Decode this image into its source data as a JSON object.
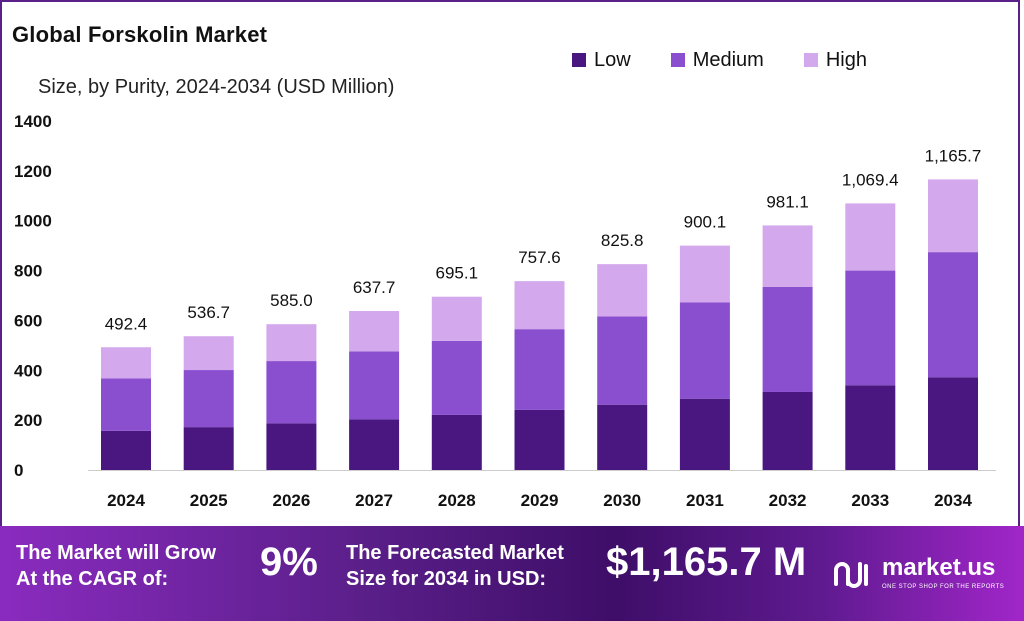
{
  "title": "Global Forskolin Market",
  "subtitle": "Size, by Purity, 2024-2034 (USD Million)",
  "colors": {
    "low": "#4a1780",
    "medium": "#8a4fcf",
    "high": "#d4a8ec"
  },
  "banner": {
    "cagr_label_line1": "The Market will Grow",
    "cagr_label_line2": "At the CAGR of:",
    "cagr_value": "9%",
    "forecast_label_line1": "The Forecasted Market",
    "forecast_label_line2": "Size for 2034 in USD:",
    "forecast_value": "$1,165.7 M",
    "logo_name": "market.us",
    "logo_tagline": "ONE STOP SHOP FOR THE REPORTS",
    "logo_icon": "market-us-logo-icon"
  },
  "chart_data": {
    "type": "bar",
    "stacked": true,
    "title": "Global Forskolin Market",
    "subtitle": "Size, by Purity, 2024-2034 (USD Million)",
    "categories": [
      "2024",
      "2025",
      "2026",
      "2027",
      "2028",
      "2029",
      "2030",
      "2031",
      "2032",
      "2033",
      "2034"
    ],
    "series": [
      {
        "name": "Low",
        "values": [
          157,
          172,
          187,
          203,
          221,
          241,
          262,
          286,
          313,
          340,
          372
        ]
      },
      {
        "name": "Medium",
        "values": [
          210,
          229,
          250,
          273,
          297,
          324,
          354,
          386,
          422,
          460,
          502
        ]
      },
      {
        "name": "High",
        "values": [
          125.4,
          135.7,
          148.0,
          161.7,
          177.1,
          192.6,
          209.8,
          228.1,
          246.1,
          269.4,
          291.7
        ]
      }
    ],
    "totals": [
      492.4,
      536.7,
      585.0,
      637.7,
      695.1,
      757.6,
      825.8,
      900.1,
      981.1,
      1069.4,
      1165.7
    ],
    "total_labels": [
      "492.4",
      "536.7",
      "585.0",
      "637.7",
      "695.1",
      "757.6",
      "825.8",
      "900.1",
      "981.1",
      "1,069.4",
      "1,165.7"
    ],
    "yticks": [
      "0",
      "200",
      "400",
      "600",
      "800",
      "1000",
      "1200",
      "1400"
    ],
    "ylim": [
      0,
      1400
    ],
    "xlabel": "",
    "ylabel": "",
    "legend": "top-right",
    "grid": false
  }
}
